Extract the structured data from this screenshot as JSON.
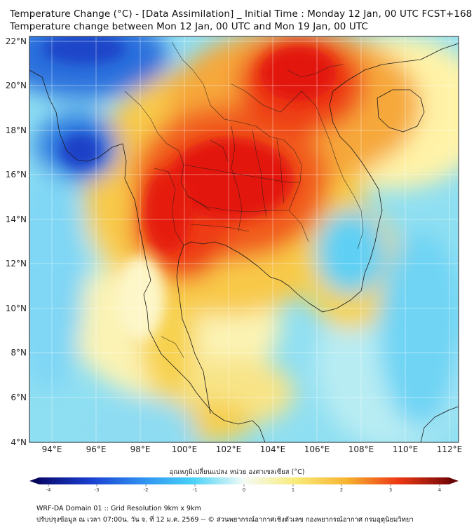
{
  "header": {
    "title_line1": "Temperature Change (°C) - [Data Assimilation] _ Initial Time : Monday 12 Jan, 00 UTC FCST+168",
    "title_line2": "Temperature change between Mon 12 Jan, 00 UTC and Mon 19 Jan, 00 UTC"
  },
  "map": {
    "lat_labels": [
      "22°N",
      "20°N",
      "18°N",
      "16°N",
      "14°N",
      "12°N",
      "10°N",
      "8°N",
      "6°N",
      "4°N"
    ],
    "lon_labels": [
      "94°E",
      "96°E",
      "98°E",
      "100°E",
      "102°E",
      "104°E",
      "106°E",
      "108°E",
      "110°E",
      "112°E"
    ],
    "lat_range": [
      4,
      22
    ],
    "lon_range": [
      93,
      112.3
    ],
    "field": "temperature change",
    "units": "°C",
    "colors": {
      "cold_extreme": "#1a2f9e",
      "cold": "#34c3f0",
      "neutral": "#f8fbe0",
      "warm": "#f6d23a",
      "hot": "#f2411b",
      "hot_extreme": "#e61a0c"
    }
  },
  "colorbar": {
    "title": "อุณหภูมิเปลี่ยนแปลง หน่วย องศาเซลเซียส (°C)",
    "ticks": [
      "-4",
      "-3",
      "-2",
      "-1",
      "0",
      "1",
      "2",
      "3",
      "4"
    ],
    "range": [
      -4,
      4
    ]
  },
  "footer": {
    "line1": "WRF-DA Domain 01 :: Grid Resolution 9km x 9km",
    "line2": "ปรับปรุงข้อมูล ณ เวลา 07:00น. วัน จ. ที่ 12 ม.ค. 2569 -- © ส่วนพยากรณ์อากาศเชิงตัวเลข กองพยากรณ์อากาศ กรมอุตุนิยมวิทยา"
  }
}
